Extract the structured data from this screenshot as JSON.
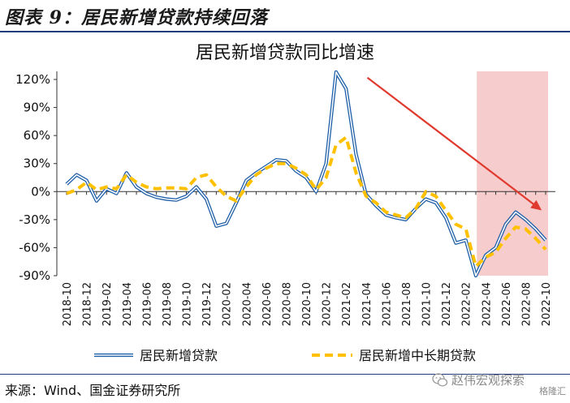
{
  "figure": {
    "title": "图表 9：居民新增贷款持续回落",
    "source": "来源：Wind、国金证券研究所",
    "watermark": "赵伟宏观探索",
    "logo_text": "格隆汇"
  },
  "chart_data": {
    "type": "line",
    "title": "居民新增贷款同比增速",
    "xlabel": "",
    "ylabel": "",
    "ylim": [
      -90,
      120
    ],
    "yticks": [
      120,
      90,
      60,
      30,
      0,
      -30,
      -60,
      -90
    ],
    "ytick_labels": [
      "120%",
      "90%",
      "60%",
      "30%",
      "0%",
      "-30%",
      "-60%",
      "-90%"
    ],
    "grid": false,
    "legend_position": "bottom",
    "x": [
      "2018-10",
      "2018-11",
      "2018-12",
      "2019-01",
      "2019-02",
      "2019-03",
      "2019-04",
      "2019-05",
      "2019-06",
      "2019-07",
      "2019-08",
      "2019-09",
      "2019-10",
      "2019-11",
      "2019-12",
      "2020-01",
      "2020-02",
      "2020-03",
      "2020-04",
      "2020-05",
      "2020-06",
      "2020-07",
      "2020-08",
      "2020-09",
      "2020-10",
      "2020-11",
      "2020-12",
      "2021-01",
      "2021-02",
      "2021-03",
      "2021-04",
      "2021-05",
      "2021-06",
      "2021-07",
      "2021-08",
      "2021-09",
      "2021-10",
      "2021-11",
      "2021-12",
      "2022-01",
      "2022-02",
      "2022-03",
      "2022-04",
      "2022-05",
      "2022-06",
      "2022-07",
      "2022-08",
      "2022-09",
      "2022-10"
    ],
    "x_tick_labels": [
      "2018-10",
      "2018-12",
      "2019-02",
      "2019-04",
      "2019-06",
      "2019-08",
      "2019-10",
      "2019-12",
      "2020-02",
      "2020-04",
      "2020-06",
      "2020-08",
      "2020-10",
      "2020-12",
      "2021-02",
      "2021-04",
      "2021-06",
      "2021-08",
      "2021-10",
      "2021-12",
      "2022-02",
      "2022-04",
      "2022-06",
      "2022-08",
      "2022-10"
    ],
    "series": [
      {
        "name": "居民新增贷款",
        "color": "#1f5fa8",
        "style": "double-line",
        "values": [
          8,
          18,
          12,
          -10,
          3,
          -2,
          20,
          5,
          -2,
          -6,
          -8,
          -9,
          -5,
          5,
          -8,
          -37,
          -34,
          -12,
          12,
          20,
          27,
          34,
          33,
          22,
          15,
          0,
          30,
          128,
          110,
          40,
          -3,
          -15,
          -25,
          -28,
          -30,
          -18,
          -8,
          -12,
          -28,
          -55,
          -52,
          -90,
          -68,
          -60,
          -35,
          -22,
          -30,
          -40,
          -52
        ]
      },
      {
        "name": "居民新增中长期贷款",
        "color": "#ffc000",
        "style": "dashed",
        "values": [
          -2,
          2,
          10,
          2,
          5,
          3,
          18,
          10,
          5,
          3,
          4,
          4,
          3,
          15,
          18,
          5,
          -5,
          -10,
          5,
          18,
          25,
          30,
          30,
          25,
          18,
          2,
          15,
          50,
          58,
          20,
          -5,
          -12,
          -22,
          -25,
          -28,
          -18,
          0,
          -5,
          -20,
          -35,
          -40,
          -80,
          -70,
          -65,
          -50,
          -38,
          -40,
          -50,
          -62
        ]
      }
    ],
    "highlight_band": {
      "from": "2022-04",
      "to": "2022-10",
      "color": "#f7cccc"
    },
    "annotation_arrow": {
      "from": [
        "2021-03",
        122
      ],
      "to": [
        "2022-10",
        -18
      ],
      "color": "#e03a2e"
    }
  }
}
